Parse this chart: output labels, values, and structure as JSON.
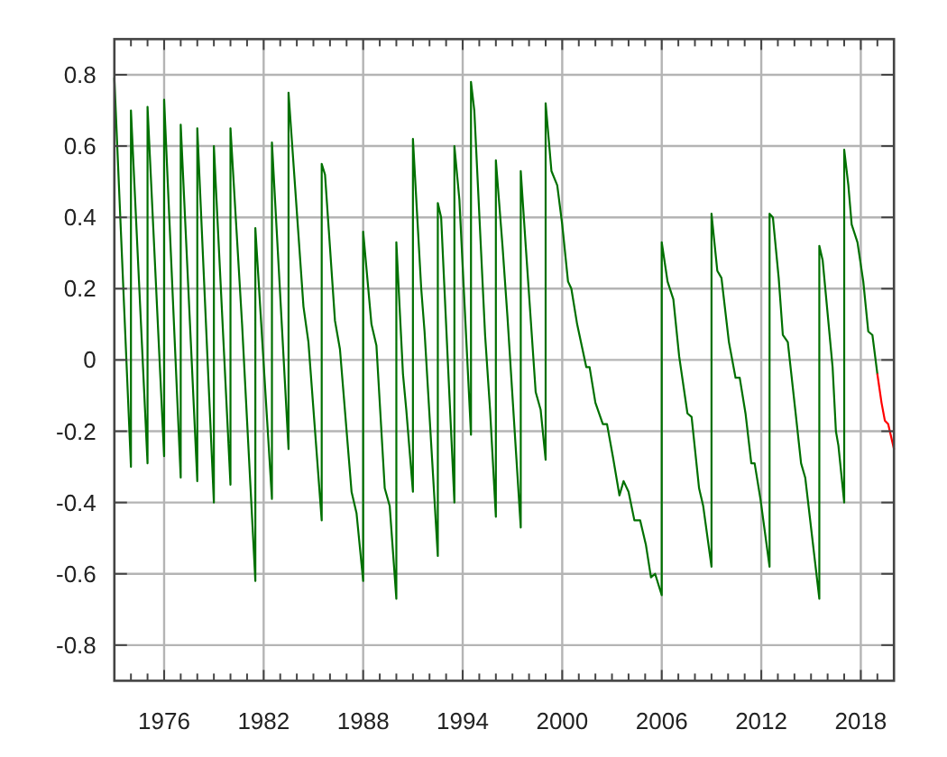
{
  "chart_data": {
    "type": "line",
    "xlim": [
      1973,
      2020
    ],
    "ylim": [
      -0.9,
      0.9
    ],
    "xticks": [
      {
        "value": 1974,
        "label": null
      },
      {
        "value": 1975,
        "label": null
      },
      1976,
      {
        "value": 1977,
        "label": null
      },
      {
        "value": 1978,
        "label": null
      },
      {
        "value": 1979,
        "label": null
      },
      {
        "value": 1980,
        "label": null
      },
      {
        "value": 1981,
        "label": null
      },
      1982,
      {
        "value": 1983,
        "label": null
      },
      {
        "value": 1984,
        "label": null
      },
      {
        "value": 1985,
        "label": null
      },
      {
        "value": 1986,
        "label": null
      },
      {
        "value": 1987,
        "label": null
      },
      1988,
      {
        "value": 1989,
        "label": null
      },
      {
        "value": 1990,
        "label": null
      },
      {
        "value": 1991,
        "label": null
      },
      {
        "value": 1992,
        "label": null
      },
      {
        "value": 1993,
        "label": null
      },
      1994,
      {
        "value": 1995,
        "label": null
      },
      {
        "value": 1996,
        "label": null
      },
      {
        "value": 1997,
        "label": null
      },
      {
        "value": 1998,
        "label": null
      },
      {
        "value": 1999,
        "label": null
      },
      2000,
      {
        "value": 2001,
        "label": null
      },
      {
        "value": 2002,
        "label": null
      },
      {
        "value": 2003,
        "label": null
      },
      {
        "value": 2004,
        "label": null
      },
      {
        "value": 2005,
        "label": null
      },
      2006,
      {
        "value": 2007,
        "label": null
      },
      {
        "value": 2008,
        "label": null
      },
      {
        "value": 2009,
        "label": null
      },
      {
        "value": 2010,
        "label": null
      },
      {
        "value": 2011,
        "label": null
      },
      2012,
      {
        "value": 2013,
        "label": null
      },
      {
        "value": 2014,
        "label": null
      },
      {
        "value": 2015,
        "label": null
      },
      {
        "value": 2016,
        "label": null
      },
      {
        "value": 2017,
        "label": null
      },
      2018,
      {
        "value": 2019,
        "label": null
      }
    ],
    "yticks": [
      -0.8,
      -0.6,
      -0.4,
      -0.2,
      0,
      0.2,
      0.4,
      0.6,
      0.8
    ],
    "grid": true,
    "series": [
      {
        "color": "#007000",
        "x": [
          1973.0,
          1974.0,
          1974.0,
          1975.0,
          1975.0,
          1976.0,
          1976.0,
          1977.0,
          1977.0,
          1978.0,
          1978.0,
          1979.0,
          1979.0,
          1980.0,
          1980.0,
          1980.7,
          1981.5,
          1981.5,
          1982.5,
          1982.5,
          1983.5,
          1983.5,
          1984.4,
          1984.7,
          1985.5,
          1985.5,
          1985.7,
          1986.3,
          1986.6,
          1987.3,
          1987.6,
          1988.0,
          1988.0,
          1988.5,
          1988.8,
          1989.3,
          1989.6,
          1990.0,
          1990.0,
          1990.4,
          1990.6,
          1991.0,
          1991.0,
          1991.5,
          1991.7,
          1992.5,
          1992.5,
          1992.7,
          1993.5,
          1993.5,
          1993.8,
          1994.5,
          1994.5,
          1994.7,
          1995.35,
          1995.65,
          1996.0,
          1996.0,
          1996.4,
          1996.7,
          1997.5,
          1997.5,
          1997.8,
          1998.4,
          1998.7,
          1999.0,
          1999.0,
          1999.35,
          1999.7,
          2000.0,
          2000.35,
          2000.55,
          2000.9,
          2001.45,
          2001.65,
          2002.0,
          2002.45,
          2002.7,
          2003.05,
          2003.45,
          2003.7,
          2004.0,
          2004.35,
          2004.7,
          2005.05,
          2005.35,
          2005.6,
          2006.0,
          2006.0,
          2006.35,
          2006.7,
          2007.05,
          2007.55,
          2007.8,
          2008.25,
          2008.5,
          2009.0,
          2009.0,
          2009.35,
          2009.6,
          2010.05,
          2010.45,
          2010.7,
          2011.05,
          2011.4,
          2011.6,
          2011.95,
          2012.5,
          2012.5,
          2012.7,
          2013.05,
          2013.3,
          2013.6,
          2014.05,
          2014.4,
          2014.65,
          2015.5,
          2015.5,
          2015.7,
          2016.3,
          2016.5,
          2016.65,
          2017.0,
          2017.0,
          2017.25,
          2017.45,
          2017.8,
          2018.15,
          2018.45,
          2018.7,
          2019.0
        ],
        "values": [
          0.79,
          -0.3,
          0.7,
          -0.29,
          0.71,
          -0.27,
          0.73,
          -0.33,
          0.66,
          -0.34,
          0.65,
          -0.4,
          0.6,
          -0.35,
          0.65,
          0.1,
          -0.62,
          0.37,
          -0.39,
          0.61,
          -0.25,
          0.75,
          0.15,
          0.05,
          -0.45,
          0.55,
          0.52,
          0.11,
          0.03,
          -0.37,
          -0.43,
          -0.62,
          0.36,
          0.1,
          0.04,
          -0.36,
          -0.41,
          -0.67,
          0.33,
          -0.04,
          -0.14,
          -0.37,
          0.62,
          0.2,
          0.08,
          -0.55,
          0.44,
          0.4,
          -0.4,
          0.6,
          0.45,
          -0.21,
          0.78,
          0.7,
          0.07,
          -0.14,
          -0.44,
          0.56,
          0.32,
          0.12,
          -0.47,
          0.53,
          0.32,
          -0.09,
          -0.14,
          -0.28,
          0.72,
          0.53,
          0.49,
          0.38,
          0.22,
          0.2,
          0.1,
          -0.02,
          -0.02,
          -0.12,
          -0.18,
          -0.18,
          -0.27,
          -0.38,
          -0.34,
          -0.37,
          -0.45,
          -0.45,
          -0.52,
          -0.61,
          -0.6,
          -0.66,
          0.33,
          0.22,
          0.17,
          0.01,
          -0.15,
          -0.16,
          -0.36,
          -0.41,
          -0.58,
          0.41,
          0.25,
          0.23,
          0.05,
          -0.05,
          -0.05,
          -0.15,
          -0.29,
          -0.29,
          -0.39,
          -0.58,
          0.41,
          0.4,
          0.23,
          0.07,
          0.05,
          -0.14,
          -0.29,
          -0.33,
          -0.67,
          0.32,
          0.28,
          -0.02,
          -0.2,
          -0.24,
          -0.4,
          0.59,
          0.49,
          0.38,
          0.33,
          0.22,
          0.08,
          0.07,
          -0.04
        ]
      },
      {
        "color": "#ff0000",
        "x": [
          2019.0,
          2019.25,
          2019.45,
          2019.65,
          2020.0
        ],
        "values": [
          -0.04,
          -0.12,
          -0.17,
          -0.18,
          -0.25
        ]
      }
    ]
  }
}
